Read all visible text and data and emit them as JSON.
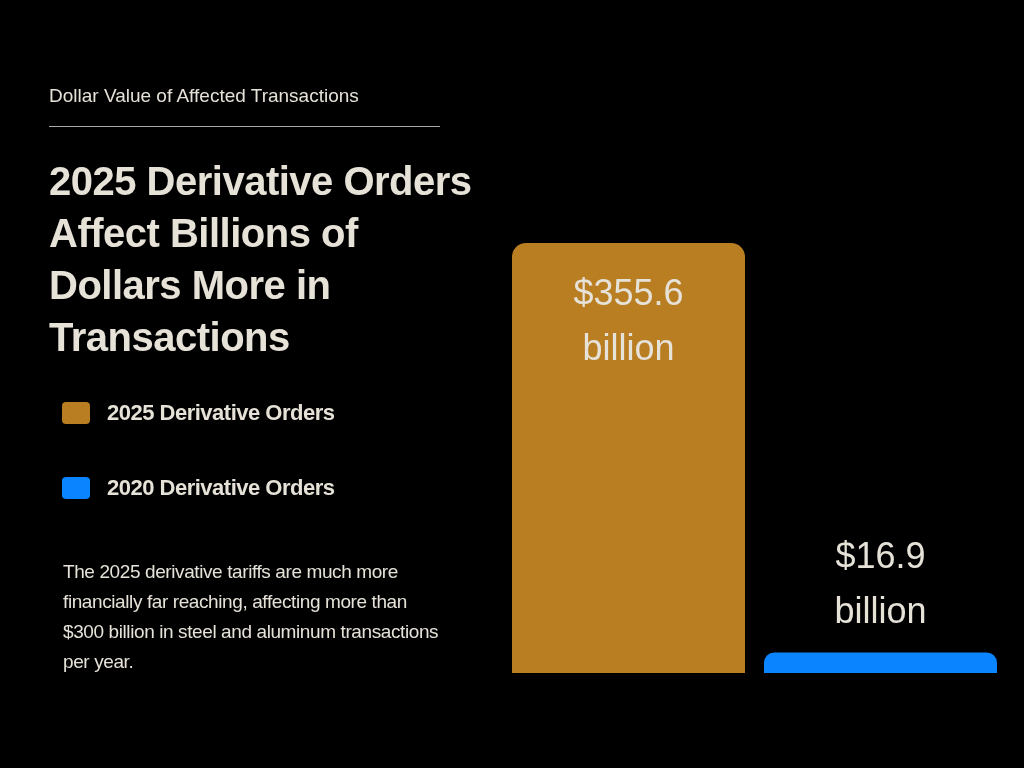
{
  "chart_data": {
    "type": "bar",
    "subtitle": "Dollar Value of Affected Transactions",
    "title": "2025 Derivative Orders Affect Billions of Dollars More in Transactions",
    "categories": [
      null
    ],
    "series": [
      {
        "name": "2025 Derivative Orders",
        "color": "#b97d22",
        "values": [
          355.6
        ],
        "value_labels": [
          "$355.6 billion"
        ]
      },
      {
        "name": "2020 Derivative Orders",
        "color": "#0a84ff",
        "values": [
          16.9
        ],
        "value_labels": [
          "$16.9 billion"
        ]
      }
    ],
    "legend": "left",
    "annotations": [
      "The 2025 derivative tariffs are much more financially far reaching, affecting more than $300 billion in steel and aluminum transactions per year."
    ]
  }
}
